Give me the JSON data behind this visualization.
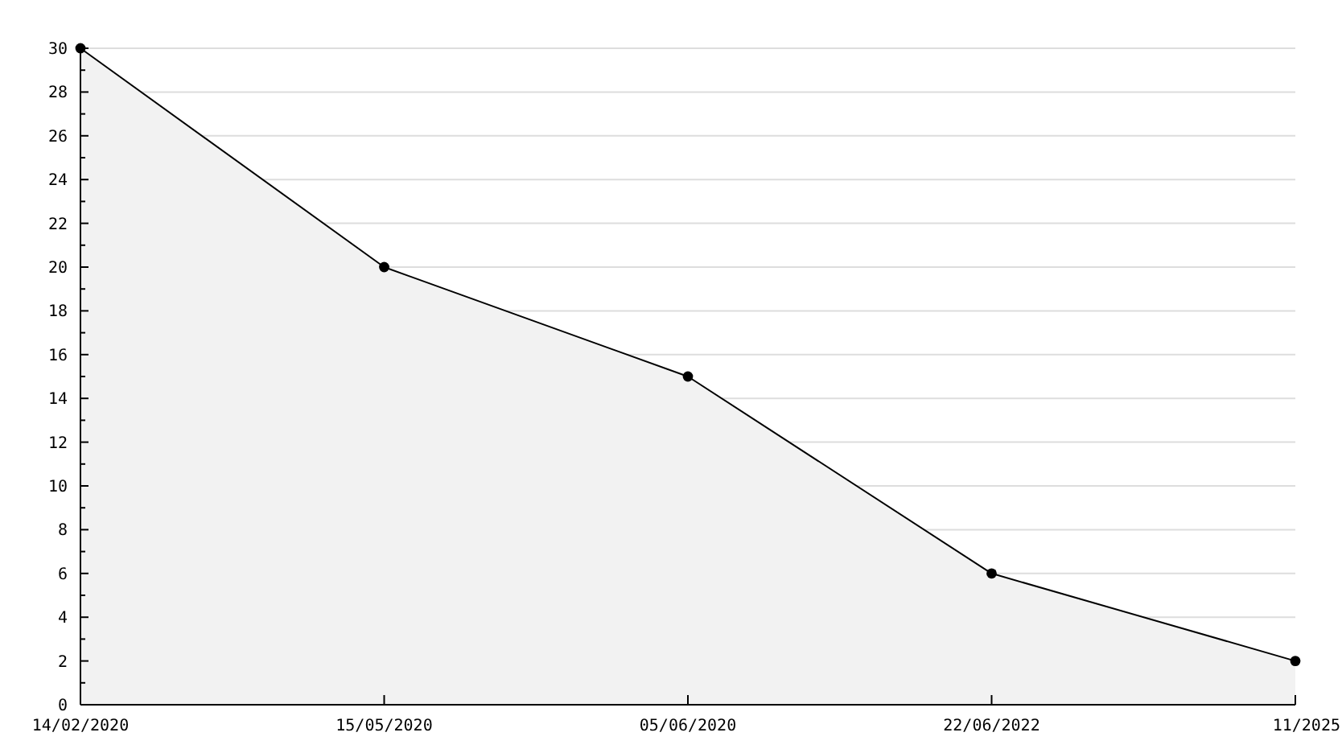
{
  "chart_data": {
    "type": "area",
    "categories": [
      "14/02/2020",
      "15/05/2020",
      "05/06/2020",
      "22/06/2022",
      "11/2025"
    ],
    "series": [
      {
        "color": "#000000",
        "values": [
          30,
          20,
          15,
          6,
          2
        ]
      }
    ],
    "ylim": [
      0,
      30
    ],
    "yticks": [
      0,
      {
        "value": 1,
        "label": null
      },
      2,
      {
        "value": 3,
        "label": null
      },
      4,
      {
        "value": 5,
        "label": null
      },
      6,
      {
        "value": 7,
        "label": null
      },
      8,
      {
        "value": 9,
        "label": null
      },
      10,
      {
        "value": 11,
        "label": null
      },
      12,
      {
        "value": 13,
        "label": null
      },
      14,
      {
        "value": 15,
        "label": null
      },
      16,
      {
        "value": 17,
        "label": null
      },
      18,
      {
        "value": 19,
        "label": null
      },
      20,
      {
        "value": 21,
        "label": null
      },
      22,
      {
        "value": 23,
        "label": null
      },
      24,
      {
        "value": 25,
        "label": null
      },
      26,
      {
        "value": 27,
        "label": null
      },
      28,
      {
        "value": 29,
        "label": null
      },
      30
    ],
    "grid": "y",
    "marker": "circle",
    "line_style": "solid"
  }
}
